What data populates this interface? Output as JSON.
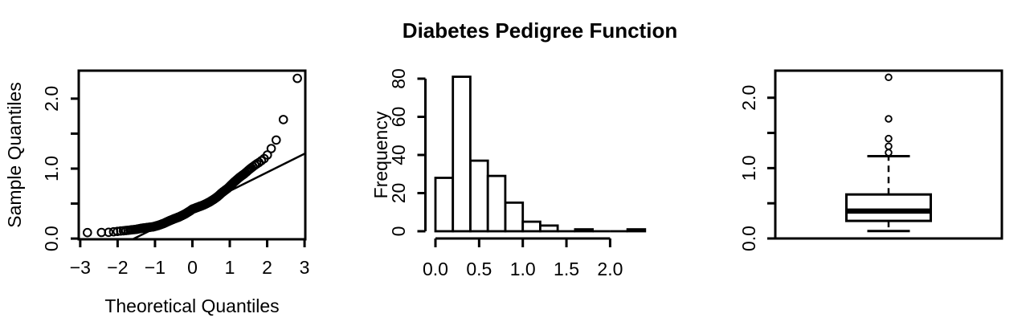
{
  "title": "Diabetes Pedigree Function",
  "colors": {
    "foreground": "#000000",
    "background": "#ffffff"
  },
  "chart_data": [
    {
      "id": "qq-plot",
      "type": "scatter",
      "title": "",
      "xlabel": "Theoretical Quantiles",
      "ylabel": "Sample Quantiles",
      "xlim": [
        -3.04,
        3.02
      ],
      "ylim": [
        -0.01,
        2.4
      ],
      "x_ticks": [
        {
          "v": -3,
          "label": "−3"
        },
        {
          "v": -2,
          "label": "−2"
        },
        {
          "v": -1,
          "label": "−1"
        },
        {
          "v": 0,
          "label": "0"
        },
        {
          "v": 1,
          "label": "1"
        },
        {
          "v": 2,
          "label": "2"
        },
        {
          "v": 3,
          "label": "3"
        }
      ],
      "y_ticks": [
        {
          "v": 0,
          "label": "0.0"
        },
        {
          "v": 0.5,
          "label": ""
        },
        {
          "v": 1,
          "label": "1.0"
        },
        {
          "v": 1.5,
          "label": ""
        },
        {
          "v": 2,
          "label": "2.0"
        }
      ],
      "marker": "open-circle",
      "n_points": 200,
      "quantile_curve": [
        [
          -2.81,
          0.085
        ],
        [
          -2.43,
          0.088
        ],
        [
          -2.25,
          0.09
        ],
        [
          -2.13,
          0.095
        ],
        [
          -2.04,
          0.1
        ],
        [
          -1.96,
          0.105
        ],
        [
          -1.9,
          0.11
        ],
        [
          -1.84,
          0.112
        ],
        [
          -1.78,
          0.115
        ],
        [
          -1.67,
          0.122
        ],
        [
          -1.5,
          0.132
        ],
        [
          -1.35,
          0.148
        ],
        [
          -1.2,
          0.158
        ],
        [
          -1.05,
          0.168
        ],
        [
          -0.9,
          0.19
        ],
        [
          -0.75,
          0.22
        ],
        [
          -0.674,
          0.24
        ],
        [
          -0.5,
          0.28
        ],
        [
          -0.35,
          0.31
        ],
        [
          -0.2,
          0.35
        ],
        [
          -0.05,
          0.4
        ],
        [
          0.0,
          0.42
        ],
        [
          0.15,
          0.45
        ],
        [
          0.3,
          0.48
        ],
        [
          0.45,
          0.52
        ],
        [
          0.6,
          0.57
        ],
        [
          0.674,
          0.6
        ],
        [
          0.8,
          0.66
        ],
        [
          0.95,
          0.72
        ],
        [
          1.1,
          0.8
        ],
        [
          1.25,
          0.87
        ],
        [
          1.4,
          0.93
        ],
        [
          1.55,
          1.0
        ],
        [
          1.7,
          1.06
        ],
        [
          1.79,
          1.09
        ],
        [
          1.84,
          1.11
        ],
        [
          1.9,
          1.135
        ],
        [
          1.96,
          1.16
        ],
        [
          2.036,
          1.22
        ],
        [
          2.133,
          1.31
        ],
        [
          2.254,
          1.42
        ],
        [
          2.432,
          1.7
        ],
        [
          2.807,
          2.29
        ]
      ],
      "reference_line": {
        "slope": 0.266,
        "intercept": 0.415
      }
    },
    {
      "id": "histogram",
      "type": "bar",
      "title": "",
      "xlabel": "",
      "ylabel": "Frequency",
      "bin_start": 0.0,
      "bin_width": 0.2,
      "counts": [
        28,
        81,
        37,
        29,
        15,
        5,
        3,
        0,
        1,
        0,
        0,
        1
      ],
      "x_ticks": [
        {
          "v": 0,
          "label": "0.0"
        },
        {
          "v": 0.5,
          "label": "0.5"
        },
        {
          "v": 1,
          "label": "1.0"
        },
        {
          "v": 1.5,
          "label": "1.5"
        },
        {
          "v": 2,
          "label": "2.0"
        }
      ],
      "y_ticks": [
        {
          "v": 0,
          "label": "0"
        },
        {
          "v": 20,
          "label": "20"
        },
        {
          "v": 40,
          "label": "40"
        },
        {
          "v": 60,
          "label": "60"
        },
        {
          "v": 80,
          "label": "80"
        }
      ],
      "ylim": [
        0,
        84
      ]
    },
    {
      "id": "box-plot",
      "type": "boxplot",
      "title": "",
      "xlabel": "",
      "ylabel": "",
      "ylim": [
        0,
        2.385
      ],
      "y_ticks": [
        {
          "v": 0,
          "label": "0.0"
        },
        {
          "v": 0.5,
          "label": ""
        },
        {
          "v": 1,
          "label": "1.0"
        },
        {
          "v": 1.5,
          "label": ""
        },
        {
          "v": 2,
          "label": "2.0"
        }
      ],
      "stats": {
        "lower_whisker": 0.105,
        "q1": 0.25,
        "median": 0.39,
        "q3": 0.625,
        "upper_whisker": 1.17
      },
      "outliers": [
        1.22,
        1.31,
        1.42,
        1.7,
        2.29
      ]
    }
  ]
}
